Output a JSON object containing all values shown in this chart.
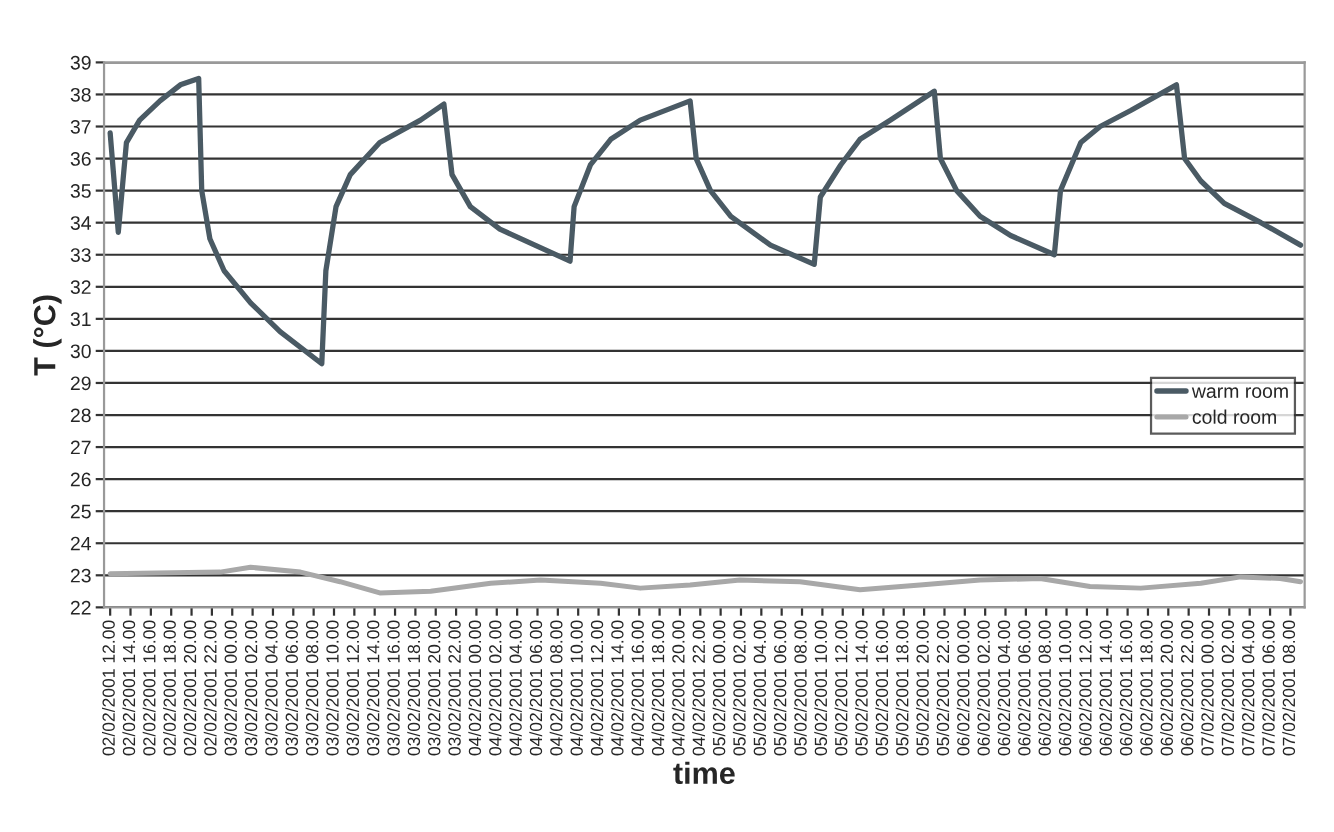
{
  "chart_data": {
    "type": "line",
    "xlabel": "time",
    "ylabel": "T (°C)",
    "xlim": [
      "2001-02-02T11:24",
      "2001-02-07T09:24"
    ],
    "ylim": [
      22,
      39
    ],
    "yticks": [
      22,
      23,
      24,
      25,
      26,
      27,
      28,
      29,
      30,
      31,
      32,
      33,
      34,
      35,
      36,
      37,
      38,
      39
    ],
    "xticks": [
      {
        "value": "2001-02-02T12:00",
        "label": "02/02/2001 12.00"
      },
      {
        "value": "2001-02-02T14:00",
        "label": "02/02/2001 14.00"
      },
      {
        "value": "2001-02-02T16:00",
        "label": "02/02/2001 16.00"
      },
      {
        "value": "2001-02-02T18:00",
        "label": "02/02/2001 18.00"
      },
      {
        "value": "2001-02-02T20:00",
        "label": "02/02/2001 20.00"
      },
      {
        "value": "2001-02-02T22:00",
        "label": "02/02/2001 22.00"
      },
      {
        "value": "2001-02-03T00:00",
        "label": "03/02/2001 00.00"
      },
      {
        "value": "2001-02-03T02:00",
        "label": "03/02/2001 02.00"
      },
      {
        "value": "2001-02-03T04:00",
        "label": "03/02/2001 04.00"
      },
      {
        "value": "2001-02-03T06:00",
        "label": "03/02/2001 06.00"
      },
      {
        "value": "2001-02-03T08:00",
        "label": "03/02/2001 08.00"
      },
      {
        "value": "2001-02-03T10:00",
        "label": "03/02/2001 10.00"
      },
      {
        "value": "2001-02-03T12:00",
        "label": "03/02/2001 12.00"
      },
      {
        "value": "2001-02-03T14:00",
        "label": "03/02/2001 14.00"
      },
      {
        "value": "2001-02-03T16:00",
        "label": "03/02/2001 16.00"
      },
      {
        "value": "2001-02-03T18:00",
        "label": "03/02/2001 18.00"
      },
      {
        "value": "2001-02-03T20:00",
        "label": "03/02/2001 20.00"
      },
      {
        "value": "2001-02-03T22:00",
        "label": "03/02/2001 22.00"
      },
      {
        "value": "2001-02-04T00:00",
        "label": "04/02/2001 00.00"
      },
      {
        "value": "2001-02-04T02:00",
        "label": "04/02/2001 02.00"
      },
      {
        "value": "2001-02-04T04:00",
        "label": "04/02/2001 04.00"
      },
      {
        "value": "2001-02-04T06:00",
        "label": "04/02/2001 06.00"
      },
      {
        "value": "2001-02-04T08:00",
        "label": "04/02/2001 08.00"
      },
      {
        "value": "2001-02-04T10:00",
        "label": "04/02/2001 10.00"
      },
      {
        "value": "2001-02-04T12:00",
        "label": "04/02/2001 12.00"
      },
      {
        "value": "2001-02-04T14:00",
        "label": "04/02/2001 14.00"
      },
      {
        "value": "2001-02-04T16:00",
        "label": "04/02/2001 16.00"
      },
      {
        "value": "2001-02-04T18:00",
        "label": "04/02/2001 18.00"
      },
      {
        "value": "2001-02-04T20:00",
        "label": "04/02/2001 20.00"
      },
      {
        "value": "2001-02-04T22:00",
        "label": "04/02/2001 22.00"
      },
      {
        "value": "2001-02-05T00:00",
        "label": "05/02/2001 00.00"
      },
      {
        "value": "2001-02-05T02:00",
        "label": "05/02/2001 02.00"
      },
      {
        "value": "2001-02-05T04:00",
        "label": "05/02/2001 04.00"
      },
      {
        "value": "2001-02-05T06:00",
        "label": "05/02/2001 06.00"
      },
      {
        "value": "2001-02-05T08:00",
        "label": "05/02/2001 08.00"
      },
      {
        "value": "2001-02-05T10:00",
        "label": "05/02/2001 10.00"
      },
      {
        "value": "2001-02-05T12:00",
        "label": "05/02/2001 12.00"
      },
      {
        "value": "2001-02-05T14:00",
        "label": "05/02/2001 14.00"
      },
      {
        "value": "2001-02-05T16:00",
        "label": "05/02/2001 16.00"
      },
      {
        "value": "2001-02-05T18:00",
        "label": "05/02/2001 18.00"
      },
      {
        "value": "2001-02-05T20:00",
        "label": "05/02/2001 20.00"
      },
      {
        "value": "2001-02-05T22:00",
        "label": "05/02/2001 22.00"
      },
      {
        "value": "2001-02-06T00:00",
        "label": "06/02/2001 00.00"
      },
      {
        "value": "2001-02-06T02:00",
        "label": "06/02/2001 02.00"
      },
      {
        "value": "2001-02-06T04:00",
        "label": "06/02/2001 04.00"
      },
      {
        "value": "2001-02-06T06:00",
        "label": "06/02/2001 06.00"
      },
      {
        "value": "2001-02-06T08:00",
        "label": "06/02/2001 08.00"
      },
      {
        "value": "2001-02-06T10:00",
        "label": "06/02/2001 10.00"
      },
      {
        "value": "2001-02-06T12:00",
        "label": "06/02/2001 12.00"
      },
      {
        "value": "2001-02-06T14:00",
        "label": "06/02/2001 14.00"
      },
      {
        "value": "2001-02-06T16:00",
        "label": "06/02/2001 16.00"
      },
      {
        "value": "2001-02-06T18:00",
        "label": "06/02/2001 18.00"
      },
      {
        "value": "2001-02-06T20:00",
        "label": "06/02/2001 20.00"
      },
      {
        "value": "2001-02-06T22:00",
        "label": "06/02/2001 22.00"
      },
      {
        "value": "2001-02-07T00:00",
        "label": "07/02/2001 00.00"
      },
      {
        "value": "2001-02-07T02:00",
        "label": "07/02/2001 02.00"
      },
      {
        "value": "2001-02-07T04:00",
        "label": "07/02/2001 04.00"
      },
      {
        "value": "2001-02-07T06:00",
        "label": "07/02/2001 06.00"
      },
      {
        "value": "2001-02-07T08:00",
        "label": "07/02/2001 08.00"
      }
    ],
    "grid": "y",
    "legend": "right",
    "line_style": "solid",
    "series": [
      {
        "name": "warm room",
        "color": "#4a5a64",
        "x": [
          "2001-02-02T12:00",
          "2001-02-02T12:48",
          "2001-02-02T13:36",
          "2001-02-02T14:54",
          "2001-02-02T16:54",
          "2001-02-02T18:54",
          "2001-02-02T20:42",
          "2001-02-02T21:00",
          "2001-02-02T21:48",
          "2001-02-02T23:12",
          "2001-02-03T01:48",
          "2001-02-03T04:42",
          "2001-02-03T08:48",
          "2001-02-03T09:12",
          "2001-02-03T10:12",
          "2001-02-03T11:36",
          "2001-02-03T14:30",
          "2001-02-03T18:30",
          "2001-02-03T20:48",
          "2001-02-03T21:36",
          "2001-02-03T23:24",
          "2001-02-04T02:18",
          "2001-02-04T09:12",
          "2001-02-04T09:36",
          "2001-02-04T11:12",
          "2001-02-04T13:12",
          "2001-02-04T16:06",
          "2001-02-04T21:00",
          "2001-02-04T21:36",
          "2001-02-04T23:00",
          "2001-02-05T01:00",
          "2001-02-05T04:54",
          "2001-02-05T09:12",
          "2001-02-05T09:48",
          "2001-02-05T11:48",
          "2001-02-05T13:42",
          "2001-02-05T16:42",
          "2001-02-05T21:00",
          "2001-02-05T21:36",
          "2001-02-05T23:12",
          "2001-02-06T01:30",
          "2001-02-06T04:30",
          "2001-02-06T08:48",
          "2001-02-06T09:24",
          "2001-02-06T11:24",
          "2001-02-06T13:18",
          "2001-02-06T16:18",
          "2001-02-06T20:48",
          "2001-02-06T21:36",
          "2001-02-06T23:12",
          "2001-02-07T01:30",
          "2001-02-07T05:06",
          "2001-02-07T09:00"
        ],
        "values": [
          36.8,
          33.7,
          36.5,
          37.2,
          37.8,
          38.3,
          38.5,
          35.0,
          33.5,
          32.5,
          31.5,
          30.6,
          29.6,
          32.5,
          34.5,
          35.5,
          36.5,
          37.2,
          37.7,
          35.5,
          34.5,
          33.8,
          32.8,
          34.5,
          35.8,
          36.6,
          37.2,
          37.8,
          36.0,
          35.0,
          34.2,
          33.3,
          32.7,
          34.8,
          35.8,
          36.6,
          37.2,
          38.1,
          36.0,
          35.0,
          34.2,
          33.6,
          33.0,
          35.0,
          36.5,
          37.0,
          37.5,
          38.3,
          36.0,
          35.3,
          34.6,
          34.0,
          33.3
        ]
      },
      {
        "name": "cold room",
        "color": "#a8a8a8",
        "x": [
          "2001-02-02T12:00",
          "2001-02-02T22:48",
          "2001-02-03T01:48",
          "2001-02-03T06:42",
          "2001-02-03T10:36",
          "2001-02-03T14:30",
          "2001-02-03T19:30",
          "2001-02-04T01:24",
          "2001-02-04T06:18",
          "2001-02-04T12:12",
          "2001-02-04T16:06",
          "2001-02-04T21:00",
          "2001-02-05T01:54",
          "2001-02-05T07:48",
          "2001-02-05T13:42",
          "2001-02-05T19:36",
          "2001-02-06T01:30",
          "2001-02-06T07:24",
          "2001-02-06T12:18",
          "2001-02-06T17:18",
          "2001-02-06T23:12",
          "2001-02-07T03:06",
          "2001-02-07T07:00",
          "2001-02-07T09:00"
        ],
        "values": [
          23.05,
          23.1,
          23.25,
          23.1,
          22.8,
          22.45,
          22.5,
          22.75,
          22.85,
          22.75,
          22.6,
          22.7,
          22.85,
          22.8,
          22.55,
          22.7,
          22.85,
          22.9,
          22.65,
          22.6,
          22.75,
          22.95,
          22.9,
          22.8
        ]
      }
    ]
  }
}
